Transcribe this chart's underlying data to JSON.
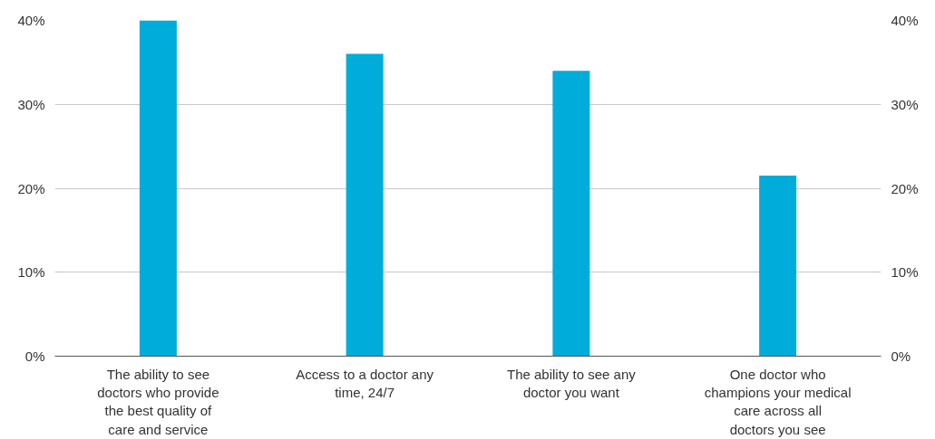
{
  "chart_data": {
    "type": "bar",
    "categories": [
      "The ability to see doctors who provide the best quality of care and service",
      "Access to a doctor any time, 24/7",
      "The ability to see any doctor you want",
      "One doctor who champions your medical care across all doctors you see"
    ],
    "values": [
      40,
      36,
      34,
      21.5
    ],
    "color": "#00acd9",
    "ylim": [
      0,
      40
    ],
    "yticks": [
      {
        "value": 0,
        "label": "0%"
      },
      {
        "value": 10,
        "label": "10%"
      },
      {
        "value": 20,
        "label": "20%"
      },
      {
        "value": 30,
        "label": "30%"
      },
      {
        "value": 40,
        "label": "40%"
      }
    ],
    "y2lim": [
      0,
      40
    ],
    "y2ticks": [
      {
        "value": 0,
        "label": "0%"
      },
      {
        "value": 10,
        "label": "10%"
      },
      {
        "value": 20,
        "label": "20%"
      },
      {
        "value": 30,
        "label": "30%"
      },
      {
        "value": 40,
        "label": "40%"
      }
    ],
    "grid": "y"
  }
}
